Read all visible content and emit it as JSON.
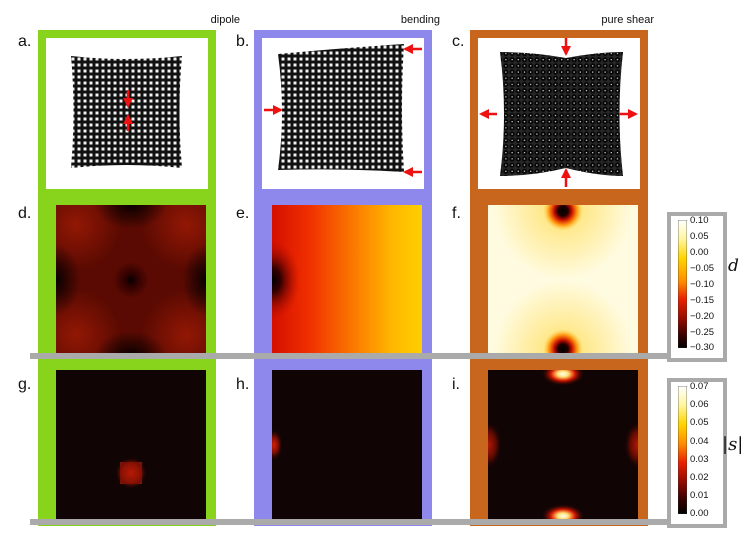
{
  "columns": [
    {
      "title": "dipole",
      "color": "#88d31c"
    },
    {
      "title": "bending",
      "color": "#8e87ec"
    },
    {
      "title": "pure shear",
      "color": "#c9661e"
    }
  ],
  "panel_labels": [
    "a.",
    "b.",
    "c.",
    "d.",
    "e.",
    "f.",
    "g.",
    "h.",
    "i."
  ],
  "colorbar_d": {
    "symbol": "d",
    "ticks": [
      "0.10",
      "0.05",
      "0.00",
      "−0.05",
      "−0.10",
      "−0.15",
      "−0.20",
      "−0.25",
      "−0.30"
    ]
  },
  "colorbar_s": {
    "symbol": "|s|",
    "ticks": [
      "0.07",
      "0.06",
      "0.05",
      "0.04",
      "0.03",
      "0.02",
      "0.01",
      "0.00"
    ]
  },
  "colors": {
    "arrow": "#ee1111",
    "separator": "#aaaaaa"
  }
}
